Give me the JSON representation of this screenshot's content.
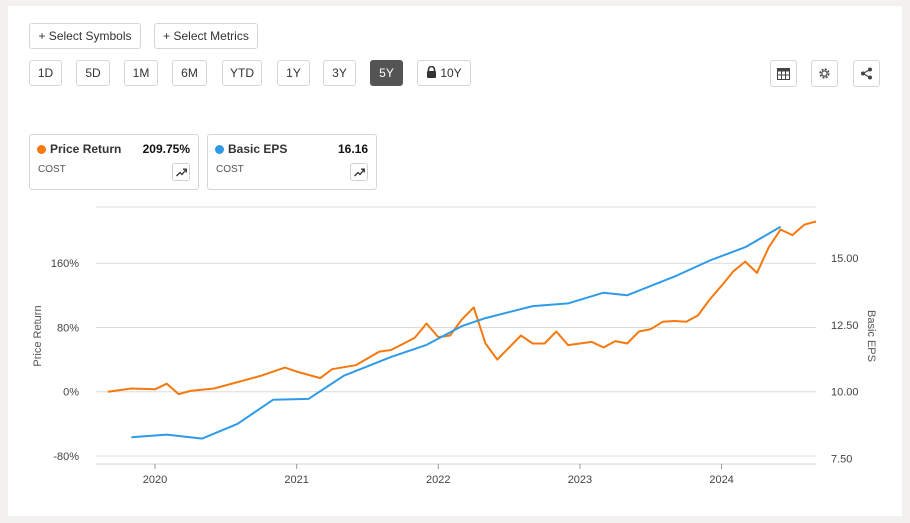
{
  "toolbar": {
    "select_symbols_label": "+ Select Symbols",
    "select_metrics_label": "+ Select Metrics",
    "ranges": [
      "1D",
      "5D",
      "1M",
      "6M",
      "YTD",
      "1Y",
      "3Y",
      "5Y",
      "10Y"
    ],
    "active_range": "5Y",
    "locked_range": "10Y",
    "icons": [
      "table-icon",
      "gear-icon",
      "share-icon"
    ]
  },
  "legend": [
    {
      "name": "Price Return",
      "value": "209.75%",
      "ticker": "COST",
      "color": "#f5790f"
    },
    {
      "name": "Basic EPS",
      "value": "16.16",
      "ticker": "COST",
      "color": "#2f9be8"
    }
  ],
  "chart_data": {
    "type": "line",
    "xlabel": "",
    "x_ticks": [
      "2020",
      "2021",
      "2022",
      "2023",
      "2024"
    ],
    "x_range": [
      "2019-08",
      "2024-09"
    ],
    "y_left": {
      "label": "Price Return",
      "ticks": [
        "-80%",
        "0%",
        "80%",
        "160%"
      ],
      "range": [
        -90,
        230
      ],
      "unit": "%"
    },
    "y_right": {
      "label": "Basic EPS",
      "ticks": [
        "7.50",
        "10.00",
        "12.50",
        "15.00"
      ],
      "range": [
        7.3,
        16.9
      ]
    },
    "grid": true,
    "series": [
      {
        "name": "Price Return",
        "axis": "left",
        "color": "#f5790f",
        "points": [
          [
            "2019-09",
            0
          ],
          [
            "2019-11",
            4
          ],
          [
            "2020-01",
            3
          ],
          [
            "2020-02",
            10
          ],
          [
            "2020-03",
            -3
          ],
          [
            "2020-04",
            1
          ],
          [
            "2020-06",
            4
          ],
          [
            "2020-08",
            12
          ],
          [
            "2020-10",
            20
          ],
          [
            "2020-12",
            30
          ],
          [
            "2021-01",
            25
          ],
          [
            "2021-03",
            17
          ],
          [
            "2021-04",
            28
          ],
          [
            "2021-06",
            33
          ],
          [
            "2021-08",
            50
          ],
          [
            "2021-09",
            52
          ],
          [
            "2021-11",
            67
          ],
          [
            "2021-12",
            85
          ],
          [
            "2022-01",
            68
          ],
          [
            "2022-02",
            70
          ],
          [
            "2022-03",
            90
          ],
          [
            "2022-04",
            105
          ],
          [
            "2022-05",
            60
          ],
          [
            "2022-06",
            40
          ],
          [
            "2022-07",
            55
          ],
          [
            "2022-08",
            70
          ],
          [
            "2022-09",
            60
          ],
          [
            "2022-10",
            60
          ],
          [
            "2022-11",
            75
          ],
          [
            "2022-12",
            58
          ],
          [
            "2023-01",
            60
          ],
          [
            "2023-02",
            62
          ],
          [
            "2023-03",
            55
          ],
          [
            "2023-04",
            63
          ],
          [
            "2023-05",
            60
          ],
          [
            "2023-06",
            75
          ],
          [
            "2023-07",
            78
          ],
          [
            "2023-08",
            87
          ],
          [
            "2023-09",
            88
          ],
          [
            "2023-10",
            87
          ],
          [
            "2023-11",
            95
          ],
          [
            "2023-12",
            115
          ],
          [
            "2024-01",
            132
          ],
          [
            "2024-02",
            150
          ],
          [
            "2024-03",
            162
          ],
          [
            "2024-04",
            148
          ],
          [
            "2024-05",
            180
          ],
          [
            "2024-06",
            202
          ],
          [
            "2024-07",
            195
          ],
          [
            "2024-08",
            208
          ],
          [
            "2024-09",
            212
          ]
        ]
      },
      {
        "name": "Basic EPS",
        "axis": "right",
        "color": "#2f9be8",
        "points": [
          [
            "2019-11",
            8.3
          ],
          [
            "2020-02",
            8.4
          ],
          [
            "2020-05",
            8.25
          ],
          [
            "2020-08",
            8.8
          ],
          [
            "2020-11",
            9.7
          ],
          [
            "2021-02",
            9.73
          ],
          [
            "2021-05",
            10.6
          ],
          [
            "2021-09",
            11.3
          ],
          [
            "2021-12",
            11.75
          ],
          [
            "2022-03",
            12.45
          ],
          [
            "2022-05",
            12.75
          ],
          [
            "2022-09",
            13.2
          ],
          [
            "2022-12",
            13.3
          ],
          [
            "2023-03",
            13.7
          ],
          [
            "2023-05",
            13.6
          ],
          [
            "2023-09",
            14.3
          ],
          [
            "2023-12",
            14.9
          ],
          [
            "2024-03",
            15.4
          ],
          [
            "2024-06",
            16.16
          ]
        ]
      }
    ]
  }
}
